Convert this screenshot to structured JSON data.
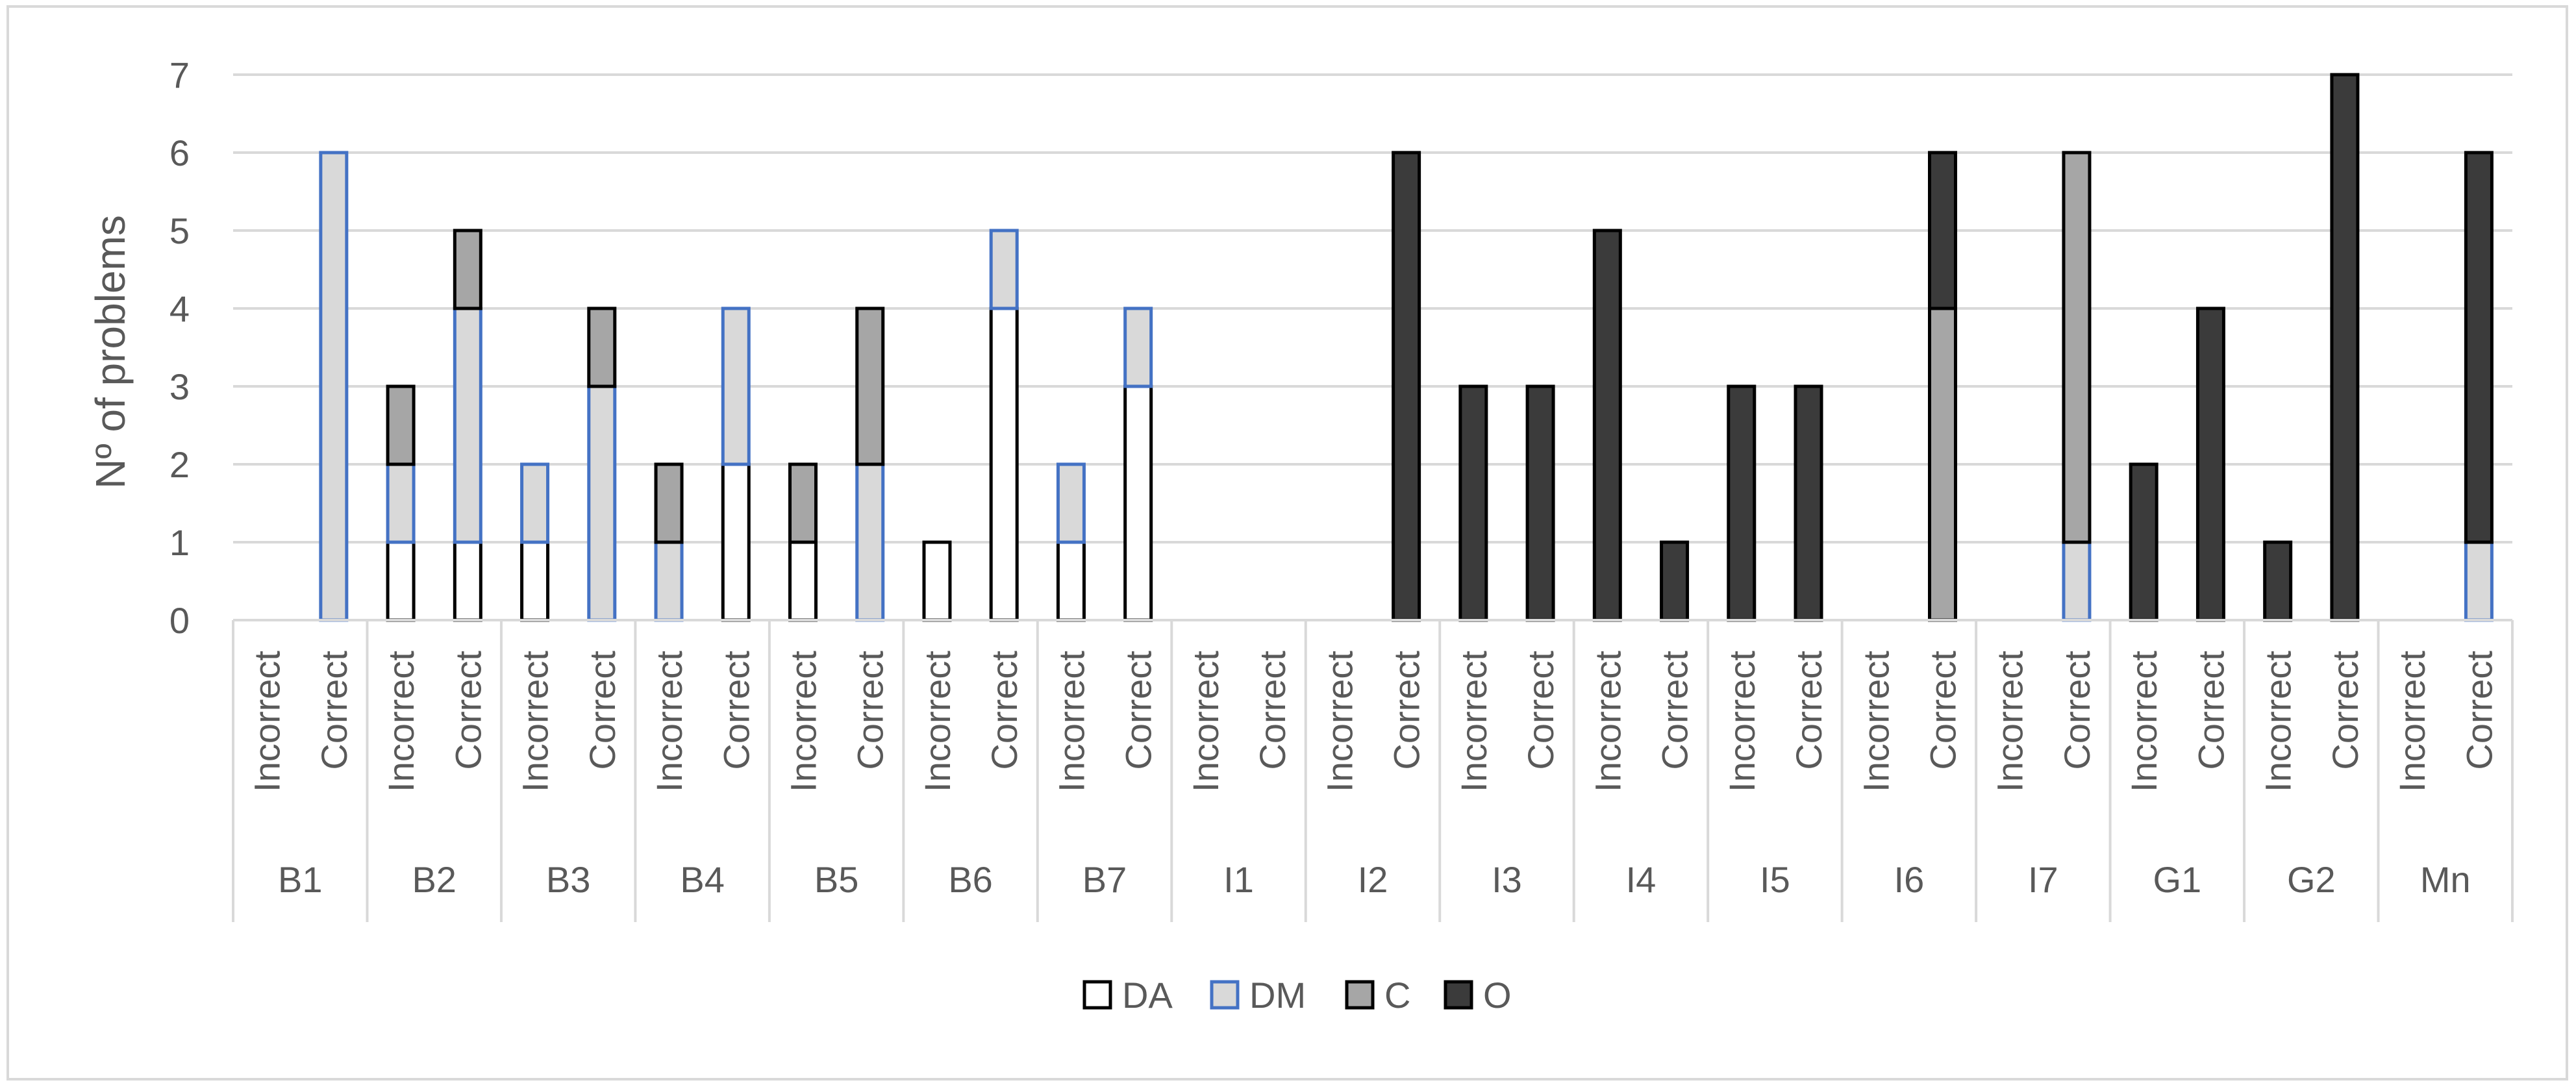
{
  "chart_data": {
    "type": "bar",
    "stacked": true,
    "ylabel": "Nº of problems",
    "xlabel": "",
    "ylim": [
      0,
      7
    ],
    "yticks": [
      0,
      1,
      2,
      3,
      4,
      5,
      6,
      7
    ],
    "grid": true,
    "legend_position": "bottom",
    "groups": [
      "B1",
      "B2",
      "B3",
      "B4",
      "B5",
      "B6",
      "B7",
      "I1",
      "I2",
      "I3",
      "I4",
      "I5",
      "I6",
      "I7",
      "G1",
      "G2",
      "Mn"
    ],
    "subcategories": [
      "Incorrect",
      "Correct"
    ],
    "categories": [
      "B1 Incorrect",
      "B1 Correct",
      "B2 Incorrect",
      "B2 Correct",
      "B3 Incorrect",
      "B3 Correct",
      "B4 Incorrect",
      "B4 Correct",
      "B5 Incorrect",
      "B5 Correct",
      "B6 Incorrect",
      "B6 Correct",
      "B7 Incorrect",
      "B7 Correct",
      "I1 Incorrect",
      "I1 Correct",
      "I2 Incorrect",
      "I2 Correct",
      "I3 Incorrect",
      "I3 Correct",
      "I4 Incorrect",
      "I4 Correct",
      "I5 Incorrect",
      "I5 Correct",
      "I6 Incorrect",
      "I6 Correct",
      "I7 Incorrect",
      "I7 Correct",
      "G1 Incorrect",
      "G1 Correct",
      "G2 Incorrect",
      "G2 Correct",
      "Mn Incorrect",
      "Mn Correct"
    ],
    "series": [
      {
        "name": "DA",
        "fill": "#ffffff",
        "stroke": "#000000",
        "values": [
          0,
          0,
          1,
          1,
          1,
          0,
          0,
          2,
          1,
          0,
          1,
          4,
          1,
          3,
          0,
          0,
          0,
          0,
          0,
          0,
          0,
          0,
          0,
          0,
          0,
          0,
          0,
          0,
          0,
          0,
          0,
          0,
          0,
          0
        ]
      },
      {
        "name": "DM",
        "fill": "#d9d9d9",
        "stroke": "#4472c4",
        "values": [
          0,
          6,
          1,
          3,
          1,
          3,
          1,
          2,
          0,
          2,
          0,
          1,
          1,
          1,
          0,
          0,
          0,
          0,
          0,
          0,
          0,
          0,
          0,
          0,
          0,
          0,
          0,
          1,
          0,
          0,
          0,
          0,
          0,
          1
        ]
      },
      {
        "name": "C",
        "fill": "#a6a6a6",
        "stroke": "#000000",
        "values": [
          0,
          0,
          1,
          1,
          0,
          1,
          1,
          0,
          1,
          2,
          0,
          0,
          0,
          0,
          0,
          0,
          0,
          0,
          0,
          0,
          0,
          0,
          0,
          0,
          0,
          4,
          0,
          5,
          0,
          0,
          0,
          0,
          0,
          0
        ]
      },
      {
        "name": "O",
        "fill": "#3b3b3b",
        "stroke": "#000000",
        "values": [
          0,
          0,
          0,
          0,
          0,
          0,
          0,
          0,
          0,
          0,
          0,
          0,
          0,
          0,
          0,
          0,
          0,
          6,
          3,
          3,
          5,
          1,
          3,
          3,
          0,
          2,
          0,
          0,
          2,
          4,
          1,
          7,
          0,
          5
        ]
      }
    ]
  },
  "colors": {
    "grid": "#d9d9d9",
    "text": "#595959",
    "axis": "#d9d9d9"
  }
}
